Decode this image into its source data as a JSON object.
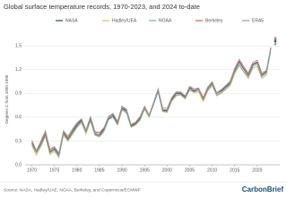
{
  "chart_data": {
    "type": "line",
    "title": "Global surface temperature records, 1970-2023, and 2024 to-date",
    "y_label": "Degrees C from 1850-1900",
    "source": "Source: NASA, Hadley/UAE, NOAA, Berkeley, and Copernicus/ECMWF",
    "logo": "CarbonBrief",
    "x": [
      1970,
      1971,
      1972,
      1973,
      1974,
      1975,
      1976,
      1977,
      1978,
      1979,
      1980,
      1981,
      1982,
      1983,
      1984,
      1985,
      1986,
      1987,
      1988,
      1989,
      1990,
      1991,
      1992,
      1993,
      1994,
      1995,
      1996,
      1997,
      1998,
      1999,
      2000,
      2001,
      2002,
      2003,
      2004,
      2005,
      2006,
      2007,
      2008,
      2009,
      2010,
      2011,
      2012,
      2013,
      2014,
      2015,
      2016,
      2017,
      2018,
      2019,
      2020,
      2021,
      2022,
      2023
    ],
    "x_to_date": 2024,
    "xlim": [
      1968.5,
      2025
    ],
    "xticks": [
      1970,
      1975,
      1980,
      1985,
      1990,
      1995,
      2000,
      2005,
      2010,
      2015,
      2020
    ],
    "ylim": [
      0,
      1.65
    ],
    "yticks": [
      {
        "value": 0,
        "label": "0.0"
      },
      0.3,
      0.6,
      0.9,
      1.2,
      1.5
    ],
    "grid": true,
    "series": [
      {
        "name": "NASA",
        "color": "#2b4a7a",
        "to_date": 1.56,
        "values": [
          0.27,
          0.16,
          0.26,
          0.39,
          0.16,
          0.2,
          0.12,
          0.4,
          0.32,
          0.41,
          0.5,
          0.56,
          0.42,
          0.57,
          0.39,
          0.37,
          0.45,
          0.58,
          0.62,
          0.52,
          0.71,
          0.68,
          0.49,
          0.52,
          0.59,
          0.72,
          0.62,
          0.77,
          0.93,
          0.69,
          0.68,
          0.82,
          0.9,
          0.9,
          0.85,
          0.97,
          0.93,
          0.96,
          0.84,
          0.96,
          1.03,
          0.9,
          0.93,
          0.98,
          1.03,
          1.19,
          1.3,
          1.21,
          1.13,
          1.26,
          1.29,
          1.13,
          1.17,
          1.47
        ]
      },
      {
        "name": "Hadley/UEA",
        "color": "#e8b84a",
        "to_date": 1.52,
        "values": [
          0.24,
          0.12,
          0.23,
          0.36,
          0.13,
          0.17,
          0.09,
          0.37,
          0.3,
          0.38,
          0.47,
          0.53,
          0.39,
          0.55,
          0.37,
          0.35,
          0.42,
          0.57,
          0.6,
          0.5,
          0.69,
          0.65,
          0.47,
          0.5,
          0.56,
          0.7,
          0.6,
          0.76,
          0.92,
          0.67,
          0.66,
          0.8,
          0.87,
          0.88,
          0.83,
          0.94,
          0.91,
          0.92,
          0.8,
          0.93,
          1.0,
          0.87,
          0.9,
          0.95,
          1.0,
          1.15,
          1.25,
          1.17,
          1.09,
          1.22,
          1.24,
          1.09,
          1.13,
          1.45
        ]
      },
      {
        "name": "NOAA",
        "color": "#5ab4d6",
        "to_date": 1.53,
        "values": [
          0.26,
          0.15,
          0.25,
          0.37,
          0.15,
          0.19,
          0.11,
          0.39,
          0.31,
          0.4,
          0.48,
          0.54,
          0.41,
          0.56,
          0.38,
          0.36,
          0.43,
          0.57,
          0.6,
          0.51,
          0.7,
          0.66,
          0.48,
          0.51,
          0.57,
          0.71,
          0.61,
          0.76,
          0.92,
          0.68,
          0.67,
          0.81,
          0.88,
          0.89,
          0.84,
          0.95,
          0.92,
          0.94,
          0.82,
          0.94,
          1.01,
          0.88,
          0.91,
          0.96,
          1.02,
          1.17,
          1.27,
          1.18,
          1.11,
          1.24,
          1.27,
          1.11,
          1.15,
          1.44
        ]
      },
      {
        "name": "Berkeley",
        "color": "#d9603b",
        "to_date": 1.58,
        "values": [
          0.29,
          0.17,
          0.28,
          0.4,
          0.18,
          0.22,
          0.14,
          0.42,
          0.34,
          0.43,
          0.52,
          0.57,
          0.43,
          0.59,
          0.41,
          0.39,
          0.46,
          0.6,
          0.64,
          0.53,
          0.73,
          0.69,
          0.5,
          0.53,
          0.6,
          0.73,
          0.62,
          0.78,
          0.95,
          0.7,
          0.69,
          0.83,
          0.91,
          0.91,
          0.86,
          0.98,
          0.94,
          0.96,
          0.83,
          0.96,
          1.04,
          0.9,
          0.94,
          0.99,
          1.04,
          1.2,
          1.31,
          1.22,
          1.14,
          1.27,
          1.3,
          1.14,
          1.18,
          1.48
        ]
      },
      {
        "name": "ERA5",
        "color": "#9a9a9a",
        "to_date": 1.6,
        "values": [
          0.31,
          0.18,
          0.3,
          0.43,
          0.2,
          0.23,
          0.15,
          0.43,
          0.36,
          0.45,
          0.53,
          0.58,
          0.44,
          0.61,
          0.42,
          0.41,
          0.47,
          0.61,
          0.65,
          0.55,
          0.74,
          0.7,
          0.51,
          0.54,
          0.61,
          0.74,
          0.63,
          0.79,
          0.96,
          0.72,
          0.71,
          0.85,
          0.92,
          0.92,
          0.87,
          0.99,
          0.96,
          0.97,
          0.85,
          0.98,
          1.05,
          0.91,
          0.95,
          1.0,
          1.06,
          1.22,
          1.33,
          1.24,
          1.16,
          1.29,
          1.32,
          1.16,
          1.19,
          1.48
        ]
      }
    ]
  }
}
